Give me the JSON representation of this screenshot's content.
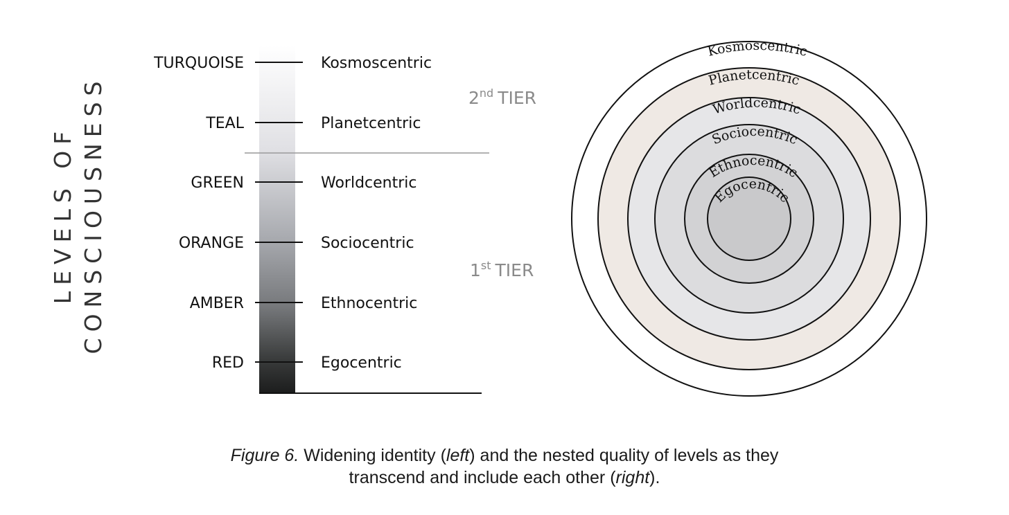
{
  "axis_label": {
    "line1": "LEVELS OF",
    "line2": "CONSCIOUSNESS"
  },
  "levels": [
    {
      "color_name": "TURQUOISE",
      "stage": "Kosmoscentric"
    },
    {
      "color_name": "TEAL",
      "stage": "Planetcentric"
    },
    {
      "color_name": "GREEN",
      "stage": "Worldcentric"
    },
    {
      "color_name": "ORANGE",
      "stage": "Sociocentric"
    },
    {
      "color_name": "AMBER",
      "stage": "Ethnocentric"
    },
    {
      "color_name": "RED",
      "stage": "Egocentric"
    }
  ],
  "tiers": {
    "second": {
      "number": "2",
      "suffix": "nd",
      "label": "TIER"
    },
    "first": {
      "number": "1",
      "suffix": "st",
      "label": "TIER"
    }
  },
  "rings": [
    {
      "label": "Kosmoscentric",
      "fill": "#ffffff"
    },
    {
      "label": "Planetcentric",
      "fill": "#efe9e4"
    },
    {
      "label": "Worldcentric",
      "fill": "#e6e6e8"
    },
    {
      "label": "Sociocentric",
      "fill": "#dcdcde"
    },
    {
      "label": "Ethnocentric",
      "fill": "#d2d2d4"
    },
    {
      "label": "Egocentric",
      "fill": "#c9c9cb"
    }
  ],
  "caption": {
    "figure": "Figure 6.",
    "t1": " Widening identity (",
    "left": "left",
    "t2": ") and the nested quality of levels as they",
    "t3": "transcend and include each other (",
    "right": "right",
    "t4": ")."
  }
}
